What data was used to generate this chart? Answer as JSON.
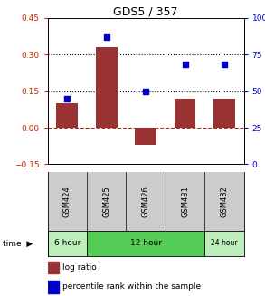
{
  "title": "GDS5 / 357",
  "samples": [
    "GSM424",
    "GSM425",
    "GSM426",
    "GSM431",
    "GSM432"
  ],
  "log_ratio": [
    0.1,
    0.33,
    -0.07,
    0.12,
    0.12
  ],
  "percentile_rank": [
    45,
    87,
    50,
    68,
    68
  ],
  "left_ylim": [
    -0.15,
    0.45
  ],
  "right_ylim": [
    0,
    100
  ],
  "left_yticks": [
    -0.15,
    0.0,
    0.15,
    0.3,
    0.45
  ],
  "right_yticks": [
    0,
    25,
    50,
    75,
    100
  ],
  "right_yticklabels": [
    "0",
    "25",
    "50",
    "75",
    "100%"
  ],
  "hline_dotted": [
    0.15,
    0.3
  ],
  "hline_zero_color": "#cc2200",
  "bar_color": "#993333",
  "dot_color": "#0000cc",
  "time_ranges": [
    [
      0,
      1,
      "6 hour",
      "#bbeebb"
    ],
    [
      1,
      4,
      "12 hour",
      "#55cc55"
    ],
    [
      4,
      5,
      "24 hour",
      "#bbeebb"
    ]
  ],
  "sample_bg": "#cccccc",
  "bg_plot": "#ffffff",
  "legend_bar_label": "log ratio",
  "legend_dot_label": "percentile rank within the sample"
}
